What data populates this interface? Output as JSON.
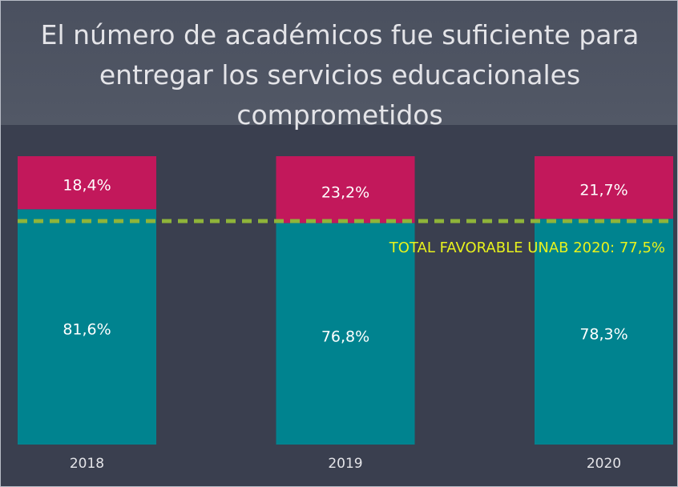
{
  "chart_data": {
    "type": "stacked_bar",
    "title": "El número de académicos fue suficiente para entregar los servicios educacionales comprometidos",
    "categories": [
      "2018",
      "2019",
      "2020"
    ],
    "series": [
      {
        "color": "#00838f",
        "values": [
          81.6,
          76.8,
          78.3
        ],
        "value_labels": [
          "81,6%",
          "76,8%",
          "78,3%"
        ]
      },
      {
        "color": "#c2185b",
        "values": [
          18.4,
          23.2,
          21.7
        ],
        "value_labels": [
          "18,4%",
          "23,2%",
          "21,7%"
        ]
      }
    ],
    "ylim": [
      0,
      100
    ],
    "reference_line": {
      "value": 77.5,
      "label": "TOTAL FAVORABLE UNAB 2020: 77,5%",
      "color": "#8fb43a",
      "label_color": "#e8f21c"
    }
  }
}
